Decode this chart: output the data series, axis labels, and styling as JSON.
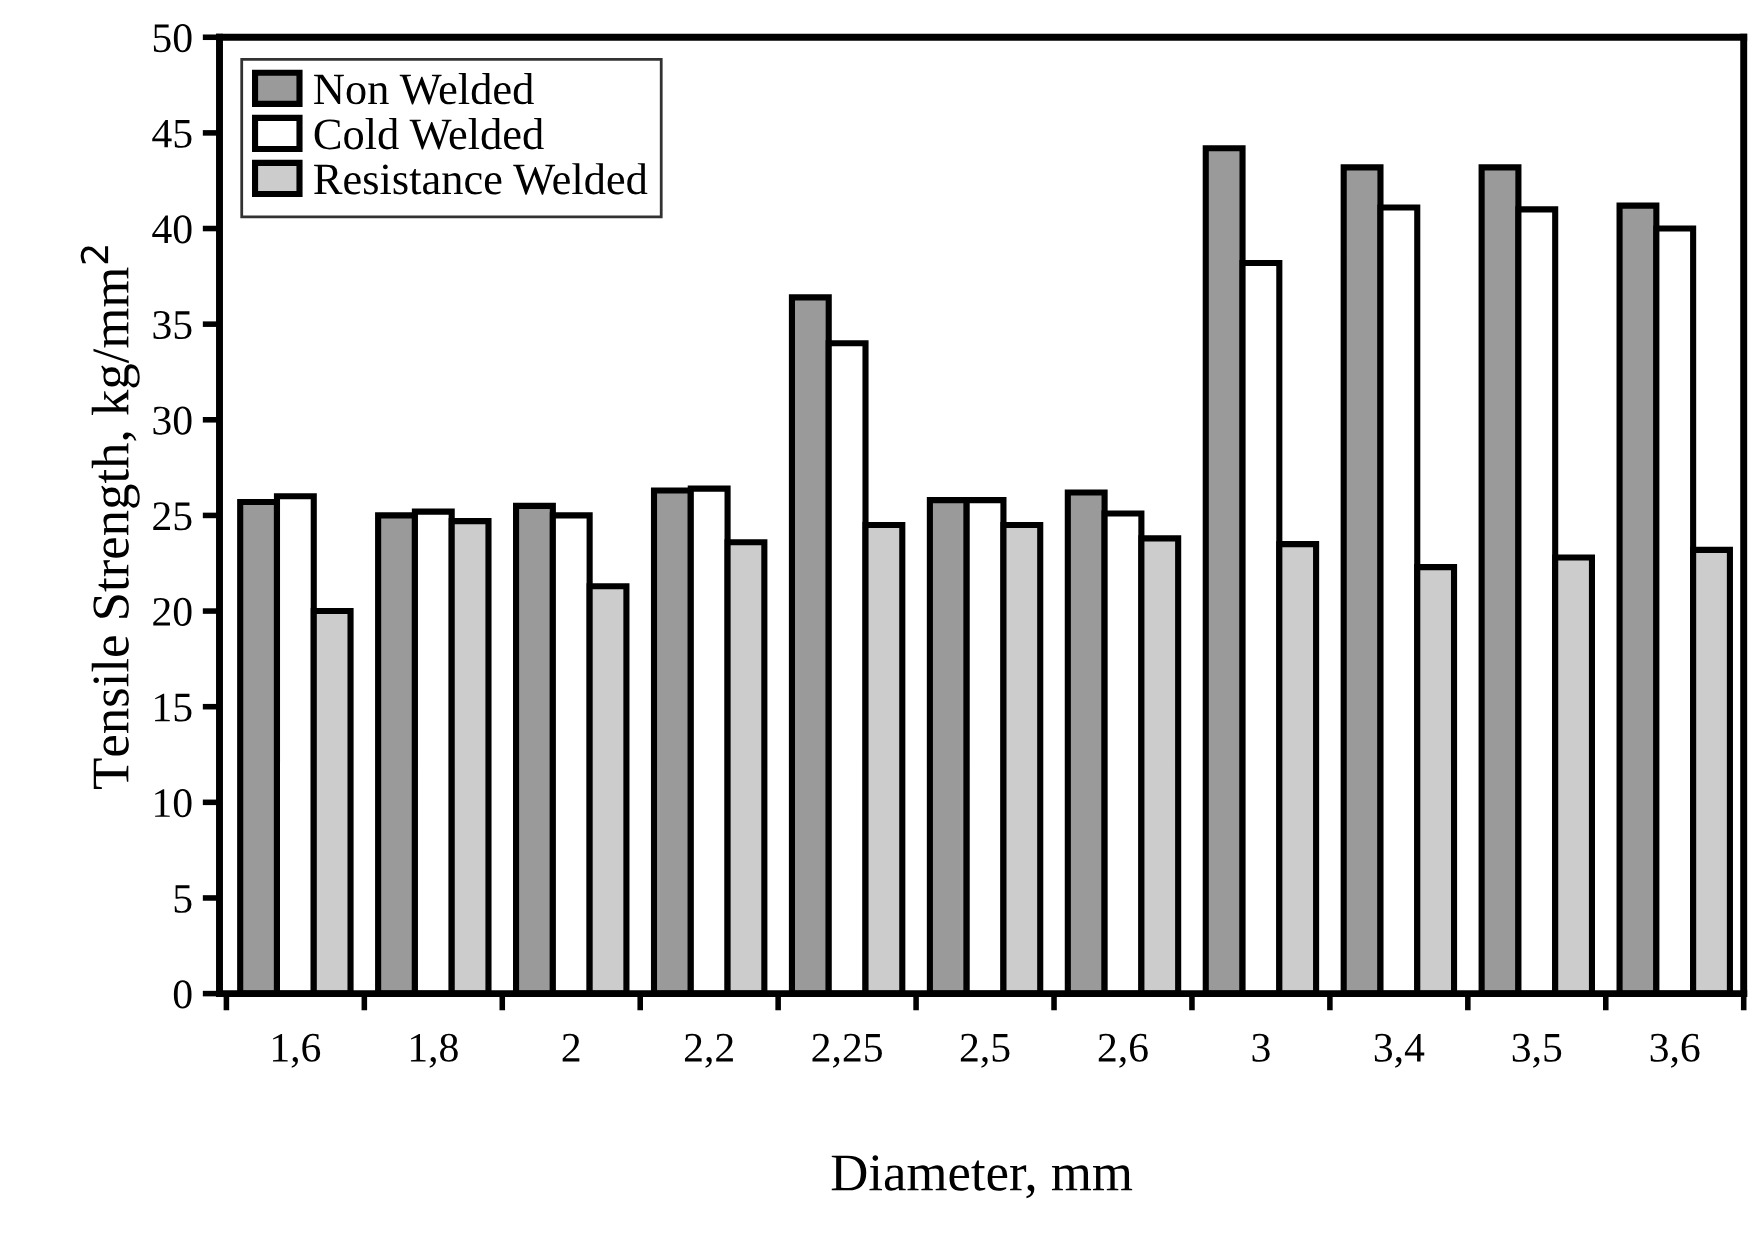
{
  "chart_data": {
    "type": "bar",
    "xlabel": "Diameter, mm",
    "ylabel": "Tensile Strength, kg/mm$^{2}$",
    "categories": [
      "1,6",
      "1,8",
      "2",
      "2,2",
      "2,25",
      "2,5",
      "2,6",
      "3",
      "3,4",
      "3,5",
      "3,6"
    ],
    "series": [
      {
        "name": "Non Welded",
        "color": "#9a9a9a",
        "values": [
          25.7,
          25.0,
          25.5,
          26.3,
          36.4,
          25.8,
          26.2,
          44.2,
          43.2,
          43.2,
          41.2
        ]
      },
      {
        "name": "Cold Welded",
        "color": "#ffffff",
        "values": [
          26.0,
          25.2,
          25.0,
          26.4,
          34.0,
          25.8,
          25.1,
          38.2,
          41.1,
          41.0,
          40.0
        ]
      },
      {
        "name": "Resistance Welded",
        "color": "#cccccc",
        "values": [
          20.0,
          24.7,
          21.3,
          23.6,
          24.5,
          24.5,
          23.8,
          23.5,
          22.3,
          22.8,
          23.2
        ]
      }
    ],
    "ylim": [
      0,
      50
    ],
    "yticks": [
      0,
      5,
      10,
      15,
      20,
      25,
      30,
      35,
      40,
      45,
      50
    ],
    "grid": false,
    "legend": "top left"
  }
}
